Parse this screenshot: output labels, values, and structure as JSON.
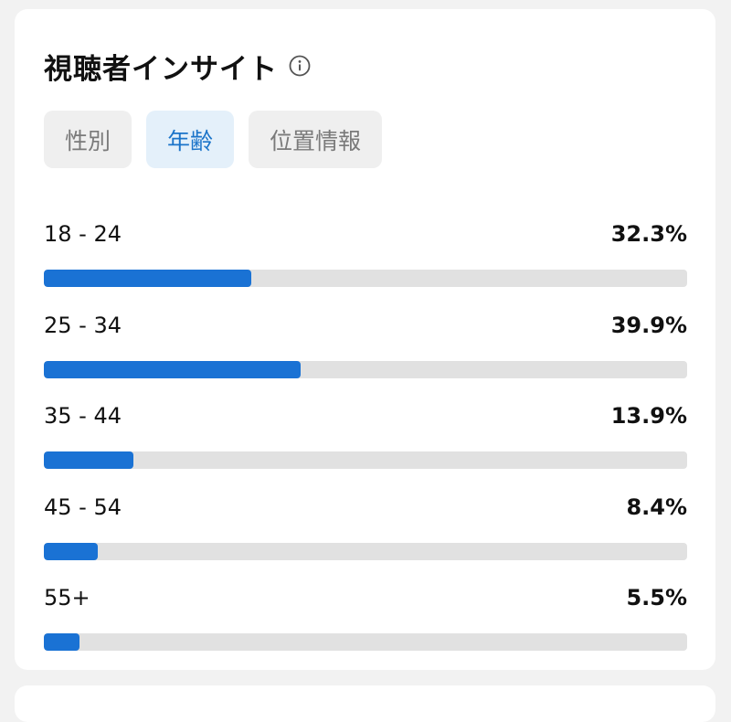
{
  "insight": {
    "title": "視聴者インサイト",
    "info_icon": "info-circle-icon",
    "tabs": [
      {
        "label": "性別",
        "active": false
      },
      {
        "label": "年齢",
        "active": true
      },
      {
        "label": "位置情報",
        "active": false
      }
    ],
    "age_rows": [
      {
        "label": "18 - 24",
        "value_text": "32.3%",
        "percent": 32.3
      },
      {
        "label": "25 - 34",
        "value_text": "39.9%",
        "percent": 39.9
      },
      {
        "label": "35 - 44",
        "value_text": "13.9%",
        "percent": 13.9
      },
      {
        "label": "45 - 54",
        "value_text": "8.4%",
        "percent": 8.4
      },
      {
        "label": "55+",
        "value_text": "5.5%",
        "percent": 5.5
      }
    ],
    "colors": {
      "bar_fill": "#1a72d4",
      "bar_track": "#e1e1e1",
      "active_tab_text": "#1b74c9",
      "active_tab_bg": "#e4f0fa",
      "inactive_tab_bg": "#efefef"
    }
  }
}
